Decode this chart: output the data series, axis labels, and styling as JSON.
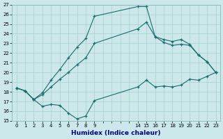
{
  "xlabel": "Humidex (Indice chaleur)",
  "bg_color": "#cce8ea",
  "grid_color": "#a8d0d3",
  "line_color": "#1a6b6b",
  "xlim": [
    -0.5,
    23.5
  ],
  "ylim": [
    15,
    27
  ],
  "xtick_labels": [
    "0",
    "1",
    "2",
    "3",
    "4",
    "5",
    "6",
    "7",
    "8",
    "9",
    "",
    "",
    "",
    "",
    "14",
    "15",
    "16",
    "17",
    "18",
    "19",
    "20",
    "21",
    "22",
    "23"
  ],
  "xtick_positions": [
    0,
    1,
    2,
    3,
    4,
    5,
    6,
    7,
    8,
    9,
    10,
    11,
    12,
    13,
    14,
    15,
    16,
    17,
    18,
    19,
    20,
    21,
    22,
    23
  ],
  "yticks": [
    15,
    16,
    17,
    18,
    19,
    20,
    21,
    22,
    23,
    24,
    25,
    26,
    27
  ],
  "line1_x": [
    0,
    1,
    2,
    3,
    4,
    5,
    6,
    7,
    8,
    9,
    14,
    15,
    16,
    17,
    18,
    19,
    20,
    21,
    22,
    23
  ],
  "line1_y": [
    18.4,
    18.1,
    17.2,
    16.5,
    16.7,
    16.6,
    15.8,
    15.2,
    15.5,
    17.1,
    18.5,
    19.2,
    18.5,
    18.6,
    18.5,
    18.7,
    19.3,
    19.2,
    19.6,
    20.0
  ],
  "line2_x": [
    0,
    1,
    2,
    3,
    4,
    5,
    6,
    7,
    8,
    9,
    14,
    15,
    16,
    17,
    18,
    19,
    20,
    21,
    22,
    23
  ],
  "line2_y": [
    18.4,
    18.1,
    17.2,
    17.9,
    19.2,
    20.3,
    21.5,
    22.6,
    23.5,
    25.8,
    26.8,
    26.8,
    23.7,
    23.4,
    23.2,
    23.4,
    22.9,
    21.8,
    21.1,
    20.0
  ],
  "line3_x": [
    0,
    1,
    2,
    3,
    4,
    5,
    6,
    7,
    8,
    9,
    14,
    15,
    16,
    17,
    18,
    19,
    20,
    21,
    22,
    23
  ],
  "line3_y": [
    18.4,
    18.1,
    17.2,
    17.7,
    18.5,
    19.3,
    20.0,
    20.8,
    21.5,
    23.0,
    24.5,
    25.2,
    23.7,
    23.1,
    22.8,
    22.9,
    22.8,
    21.8,
    21.1,
    20.0
  ]
}
